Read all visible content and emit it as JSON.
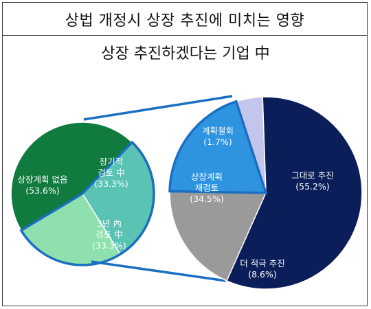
{
  "chart_data": [
    {
      "type": "pie",
      "title": "상법 개정시 상장 추진에 미치는 영향",
      "subtitle": "상장 추진하겠다는 기업 中",
      "slices": [
        {
          "label_lines": [
            "상장계획 없음",
            "(53.6%)"
          ],
          "value": 53.6,
          "color": "#117a3f"
        },
        {
          "label_lines": [
            "장기적",
            "검토 中",
            "(33.3%)"
          ],
          "value": 33.3,
          "color": "#5bc3b4"
        },
        {
          "label_lines": [
            "3년 內",
            "검토 中",
            "(33.3%)"
          ],
          "value": 33.3,
          "color": "#8ee0ae"
        }
      ]
    },
    {
      "type": "pie",
      "slices": [
        {
          "label_lines": [
            "그대로 추진",
            "(55.2%)"
          ],
          "value": 55.2,
          "color": "#0b1e5a"
        },
        {
          "label_lines": [
            "더 적극 추진",
            "(8.6%)"
          ],
          "value": 8.6,
          "color": "#9a9a9a"
        },
        {
          "label_lines": [
            "상장계획",
            "재검토",
            "(34.5%)"
          ],
          "value": 34.5,
          "color": "#2e94e0"
        },
        {
          "label_lines": [
            "계획철회",
            "(1.7%)"
          ],
          "value": 1.7,
          "color": "#c3c6ec"
        }
      ]
    }
  ],
  "colors": {
    "highlight_outline": "#1b6ec2",
    "frame": "#3a3a3a"
  }
}
